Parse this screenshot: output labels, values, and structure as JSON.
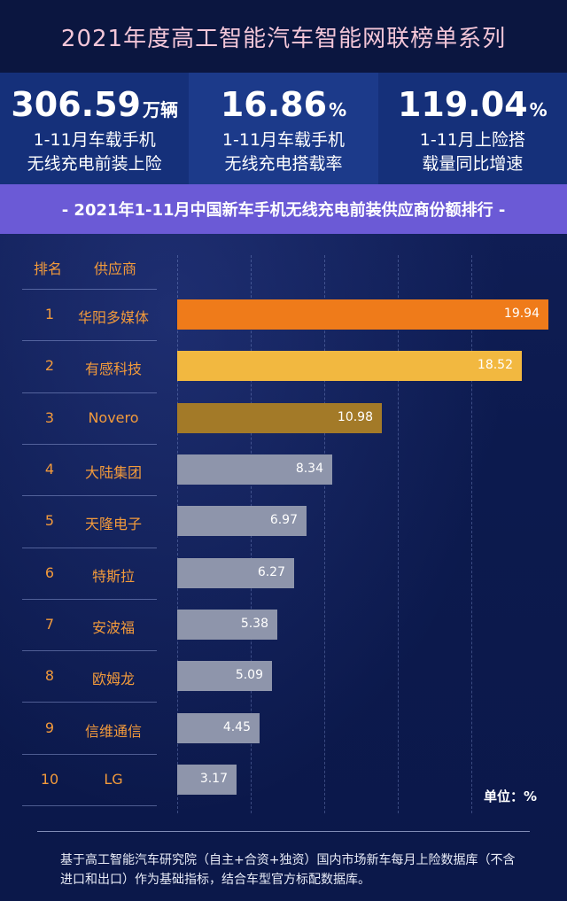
{
  "header": {
    "title": "2021年度高工智能汽车智能网联榜单系列"
  },
  "stats": [
    {
      "value": "306.59",
      "unit": "万辆",
      "line1": "1-11月车载手机",
      "line2": "无线充电前装上险"
    },
    {
      "value": "16.86",
      "unit": "%",
      "line1": "1-11月车载手机",
      "line2": "无线充电搭载率"
    },
    {
      "value": "119.04",
      "unit": "%",
      "line1": "1-11月上险搭",
      "line2": "载量同比增速"
    }
  ],
  "banner": {
    "text": "- 2021年1-11月中国新车手机无线充电前装供应商份额排行 -"
  },
  "table": {
    "rank_header": "排名",
    "supplier_header": "供应商",
    "unit_note": "单位：%"
  },
  "colors": {
    "top1": "#ef7b1a",
    "top2": "#f2b840",
    "top3": "#a37a28",
    "rest": "#8e95ab",
    "accent": "#f29a3b"
  },
  "chart_data": {
    "type": "bar",
    "orientation": "horizontal",
    "categories": [
      "华阳多媒体",
      "有感科技",
      "Novero",
      "大陆集团",
      "天隆电子",
      "特斯拉",
      "安波福",
      "欧姆龙",
      "信维通信",
      "LG"
    ],
    "ranks": [
      "1",
      "2",
      "3",
      "4",
      "5",
      "6",
      "7",
      "8",
      "9",
      "10"
    ],
    "values": [
      19.94,
      18.52,
      10.98,
      8.34,
      6.97,
      6.27,
      5.38,
      5.09,
      4.45,
      3.17
    ],
    "labels": [
      "19.94",
      "18.52",
      "10.98",
      "8.34",
      "6.97",
      "6.27",
      "5.38",
      "5.09",
      "4.45",
      "3.17"
    ],
    "unit": "%",
    "xlim": [
      0,
      20
    ]
  },
  "footnote": "基于高工智能汽车研究院（自主+合资+独资）国内市场新车每月上险数据库（不含进口和出口）作为基础指标，结合车型官方标配数据库。"
}
